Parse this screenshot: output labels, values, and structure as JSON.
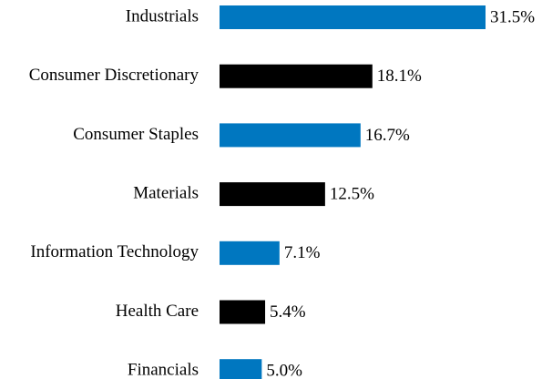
{
  "chart_data": {
    "type": "hbar",
    "categories": [
      "Industrials",
      "Consumer Discretionary",
      "Consumer Staples",
      "Materials",
      "Information Technology",
      "Health Care",
      "Financials"
    ],
    "values": [
      31.5,
      18.1,
      16.7,
      12.5,
      7.1,
      5.4,
      5.0
    ],
    "value_labels": [
      "31.5%",
      "18.1%",
      "16.7%",
      "12.5%",
      "7.1%",
      "5.4%",
      "5.0%"
    ],
    "colors": [
      "#0077c0",
      "#000000",
      "#0077c0",
      "#000000",
      "#0077c0",
      "#000000",
      "#0077c0"
    ]
  }
}
